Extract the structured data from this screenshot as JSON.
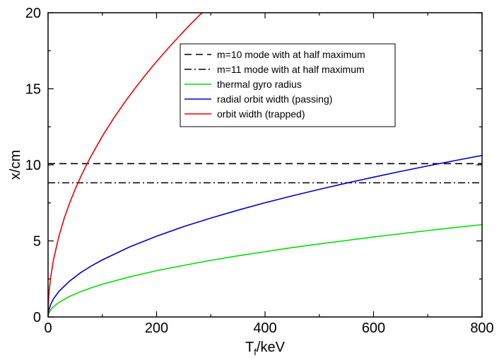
{
  "chart_data": {
    "type": "line",
    "xlabel_main": "T",
    "xlabel_sub": "f",
    "xlabel_rest": "/keV",
    "ylabel": "x/cm",
    "xlim": [
      0,
      800
    ],
    "ylim": [
      0,
      20
    ],
    "xticks": [
      0,
      200,
      400,
      600,
      800
    ],
    "yticks": [
      0,
      5,
      10,
      15,
      20
    ],
    "grid": false,
    "legend_position": "top-center",
    "series": [
      {
        "name": "m=10 mode with at half maximum",
        "color": "#000000",
        "dash": "dashed",
        "x": [
          0,
          800
        ],
        "y": [
          10.08,
          10.08
        ]
      },
      {
        "name": "m=11 mode with at half maximum",
        "color": "#000000",
        "dash": "dashdot",
        "x": [
          0,
          800
        ],
        "y": [
          8.82,
          8.82
        ]
      },
      {
        "name": "thermal gyro radius",
        "color": "#00e000",
        "dash": "solid",
        "x": [
          0,
          1,
          5,
          10,
          20,
          40,
          60,
          80,
          100,
          150,
          200,
          250,
          300,
          350,
          400,
          450,
          500,
          550,
          600,
          650,
          700,
          750,
          800
        ],
        "y": [
          0,
          0.21,
          0.48,
          0.68,
          0.96,
          1.36,
          1.66,
          1.92,
          2.15,
          2.63,
          3.04,
          3.39,
          3.72,
          4.02,
          4.29,
          4.56,
          4.8,
          5.03,
          5.26,
          5.47,
          5.68,
          5.88,
          6.07
        ]
      },
      {
        "name": "radial orbit width (passing)",
        "color": "#0000cc",
        "dash": "solid",
        "x": [
          0,
          1,
          5,
          10,
          20,
          40,
          60,
          80,
          100,
          150,
          200,
          250,
          300,
          350,
          400,
          450,
          500,
          550,
          600,
          650,
          700,
          750,
          800
        ],
        "y": [
          0,
          0.37,
          0.84,
          1.19,
          1.68,
          2.37,
          2.91,
          3.36,
          3.75,
          4.6,
          5.31,
          5.94,
          6.5,
          7.02,
          7.51,
          7.96,
          8.39,
          8.8,
          9.19,
          9.57,
          9.93,
          10.28,
          10.62
        ]
      },
      {
        "name": "orbit width (trapped)",
        "color": "#ee0000",
        "dash": "solid",
        "x": [
          0,
          1,
          2,
          5,
          10,
          20,
          30,
          40,
          50,
          60,
          70,
          80,
          100,
          120,
          140,
          160,
          180,
          200,
          220,
          240,
          260,
          280,
          285
        ],
        "y": [
          0,
          1.19,
          1.68,
          2.66,
          3.76,
          5.31,
          6.51,
          7.51,
          8.4,
          9.2,
          9.94,
          10.62,
          11.88,
          13.01,
          14.05,
          15.02,
          15.93,
          16.79,
          17.61,
          18.39,
          19.15,
          19.87,
          20.0
        ]
      }
    ]
  }
}
